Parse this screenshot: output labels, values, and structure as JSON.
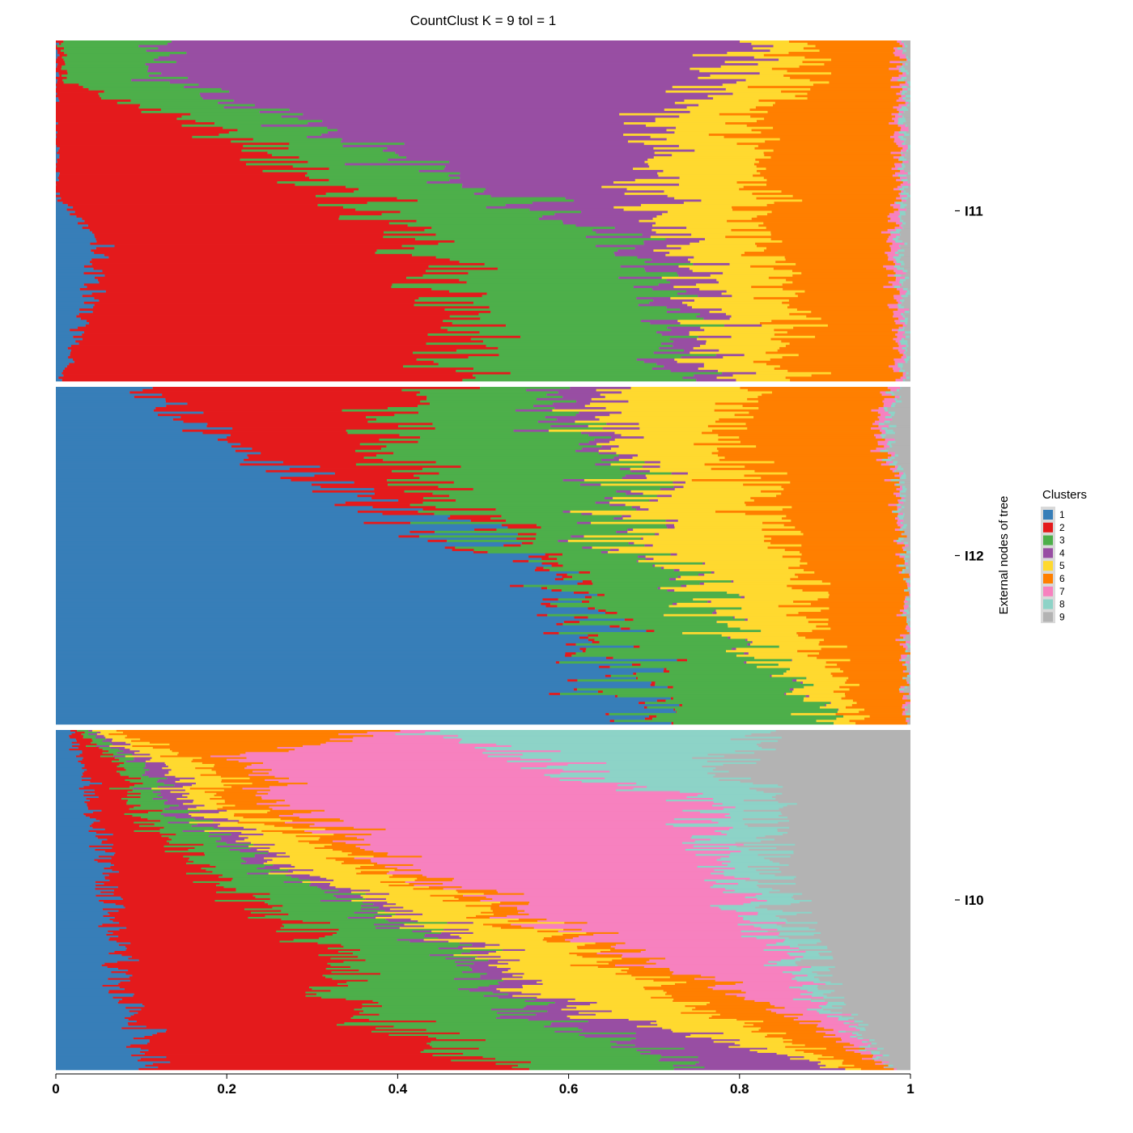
{
  "chart_data": {
    "type": "stacked-bar-horizontal",
    "title": "CountClust K =  9 tol =  1",
    "xlim": [
      0,
      1
    ],
    "x_ticks": [
      "0",
      "0.2",
      "0.4",
      "0.6",
      "0.8",
      "1"
    ],
    "side_label": "External nodes of tree",
    "legend": {
      "title": "Clusters",
      "placement": "right",
      "entries": [
        {
          "label": "1",
          "color": "#377EB8"
        },
        {
          "label": "2",
          "color": "#E41A1C"
        },
        {
          "label": "3",
          "color": "#4DAF4A"
        },
        {
          "label": "4",
          "color": "#984EA3"
        },
        {
          "label": "5",
          "color": "#FFD92F"
        },
        {
          "label": "6",
          "color": "#FF7F00"
        },
        {
          "label": "7",
          "color": "#F781BF"
        },
        {
          "label": "8",
          "color": "#8DD3C7"
        },
        {
          "label": "9",
          "color": "#B3B3B3"
        }
      ]
    },
    "groups": [
      {
        "label": "I11",
        "bars_approx": 150,
        "profile": [
          {
            "t": 0.0,
            "p": [
              0.0,
              0.003,
              0.105,
              0.725,
              0.045,
              0.105,
              0.007,
              0.004,
              0.006
            ]
          },
          {
            "t": 0.12,
            "p": [
              0.0,
              0.01,
              0.115,
              0.645,
              0.095,
              0.12,
              0.007,
              0.004,
              0.004
            ]
          },
          {
            "t": 0.25,
            "p": [
              0.0,
              0.18,
              0.125,
              0.4,
              0.11,
              0.17,
              0.007,
              0.004,
              0.004
            ]
          },
          {
            "t": 0.45,
            "p": [
              0.0,
              0.35,
              0.16,
              0.18,
              0.13,
              0.165,
              0.007,
              0.004,
              0.004
            ]
          },
          {
            "t": 0.58,
            "p": [
              0.05,
              0.38,
              0.245,
              0.06,
              0.1,
              0.15,
              0.01,
              0.005,
              0.01
            ]
          },
          {
            "t": 0.78,
            "p": [
              0.04,
              0.44,
              0.24,
              0.04,
              0.1,
              0.125,
              0.007,
              0.004,
              0.004
            ]
          },
          {
            "t": 1.0,
            "p": [
              0.005,
              0.525,
              0.255,
              0.045,
              0.09,
              0.135,
              0.007,
              0.004,
              0.004
            ]
          }
        ]
      },
      {
        "label": "I12",
        "bars_approx": 150,
        "profile": [
          {
            "t": 0.0,
            "p": [
              0.1,
              0.34,
              0.13,
              0.07,
              0.18,
              0.15,
              0.01,
              0.005,
              0.015
            ]
          },
          {
            "t": 0.15,
            "p": [
              0.18,
              0.19,
              0.24,
              0.03,
              0.13,
              0.19,
              0.01,
              0.005,
              0.025
            ]
          },
          {
            "t": 0.25,
            "p": [
              0.28,
              0.13,
              0.26,
              0.02,
              0.12,
              0.17,
              0.005,
              0.005,
              0.01
            ]
          },
          {
            "t": 0.45,
            "p": [
              0.49,
              0.02,
              0.15,
              0.01,
              0.18,
              0.14,
              0.003,
              0.002,
              0.005
            ]
          },
          {
            "t": 0.7,
            "p": [
              0.63,
              0.01,
              0.15,
              0.0,
              0.1,
              0.105,
              0.002,
              0.001,
              0.002
            ]
          },
          {
            "t": 1.0,
            "p": [
              0.695,
              0.005,
              0.21,
              0.0,
              0.03,
              0.055,
              0.002,
              0.001,
              0.002
            ]
          }
        ]
      },
      {
        "label": "I10",
        "bars_approx": 200,
        "profile": [
          {
            "t": 0.0,
            "p": [
              0.015,
              0.01,
              0.01,
              0.005,
              0.02,
              0.32,
              0.05,
              0.4,
              0.17
            ]
          },
          {
            "t": 0.08,
            "p": [
              0.03,
              0.04,
              0.02,
              0.02,
              0.05,
              0.05,
              0.35,
              0.23,
              0.21
            ]
          },
          {
            "t": 0.22,
            "p": [
              0.04,
              0.05,
              0.04,
              0.03,
              0.04,
              0.06,
              0.5,
              0.08,
              0.16
            ]
          },
          {
            "t": 0.4,
            "p": [
              0.06,
              0.11,
              0.08,
              0.03,
              0.09,
              0.04,
              0.36,
              0.06,
              0.17
            ]
          },
          {
            "t": 0.6,
            "p": [
              0.07,
              0.23,
              0.13,
              0.03,
              0.11,
              0.03,
              0.23,
              0.04,
              0.13
            ]
          },
          {
            "t": 0.8,
            "p": [
              0.08,
              0.27,
              0.18,
              0.05,
              0.16,
              0.09,
              0.06,
              0.02,
              0.09
            ]
          },
          {
            "t": 1.0,
            "p": [
              0.13,
              0.38,
              0.23,
              0.18,
              0.02,
              0.04,
              0.0,
              0.0,
              0.02
            ]
          }
        ]
      }
    ]
  }
}
